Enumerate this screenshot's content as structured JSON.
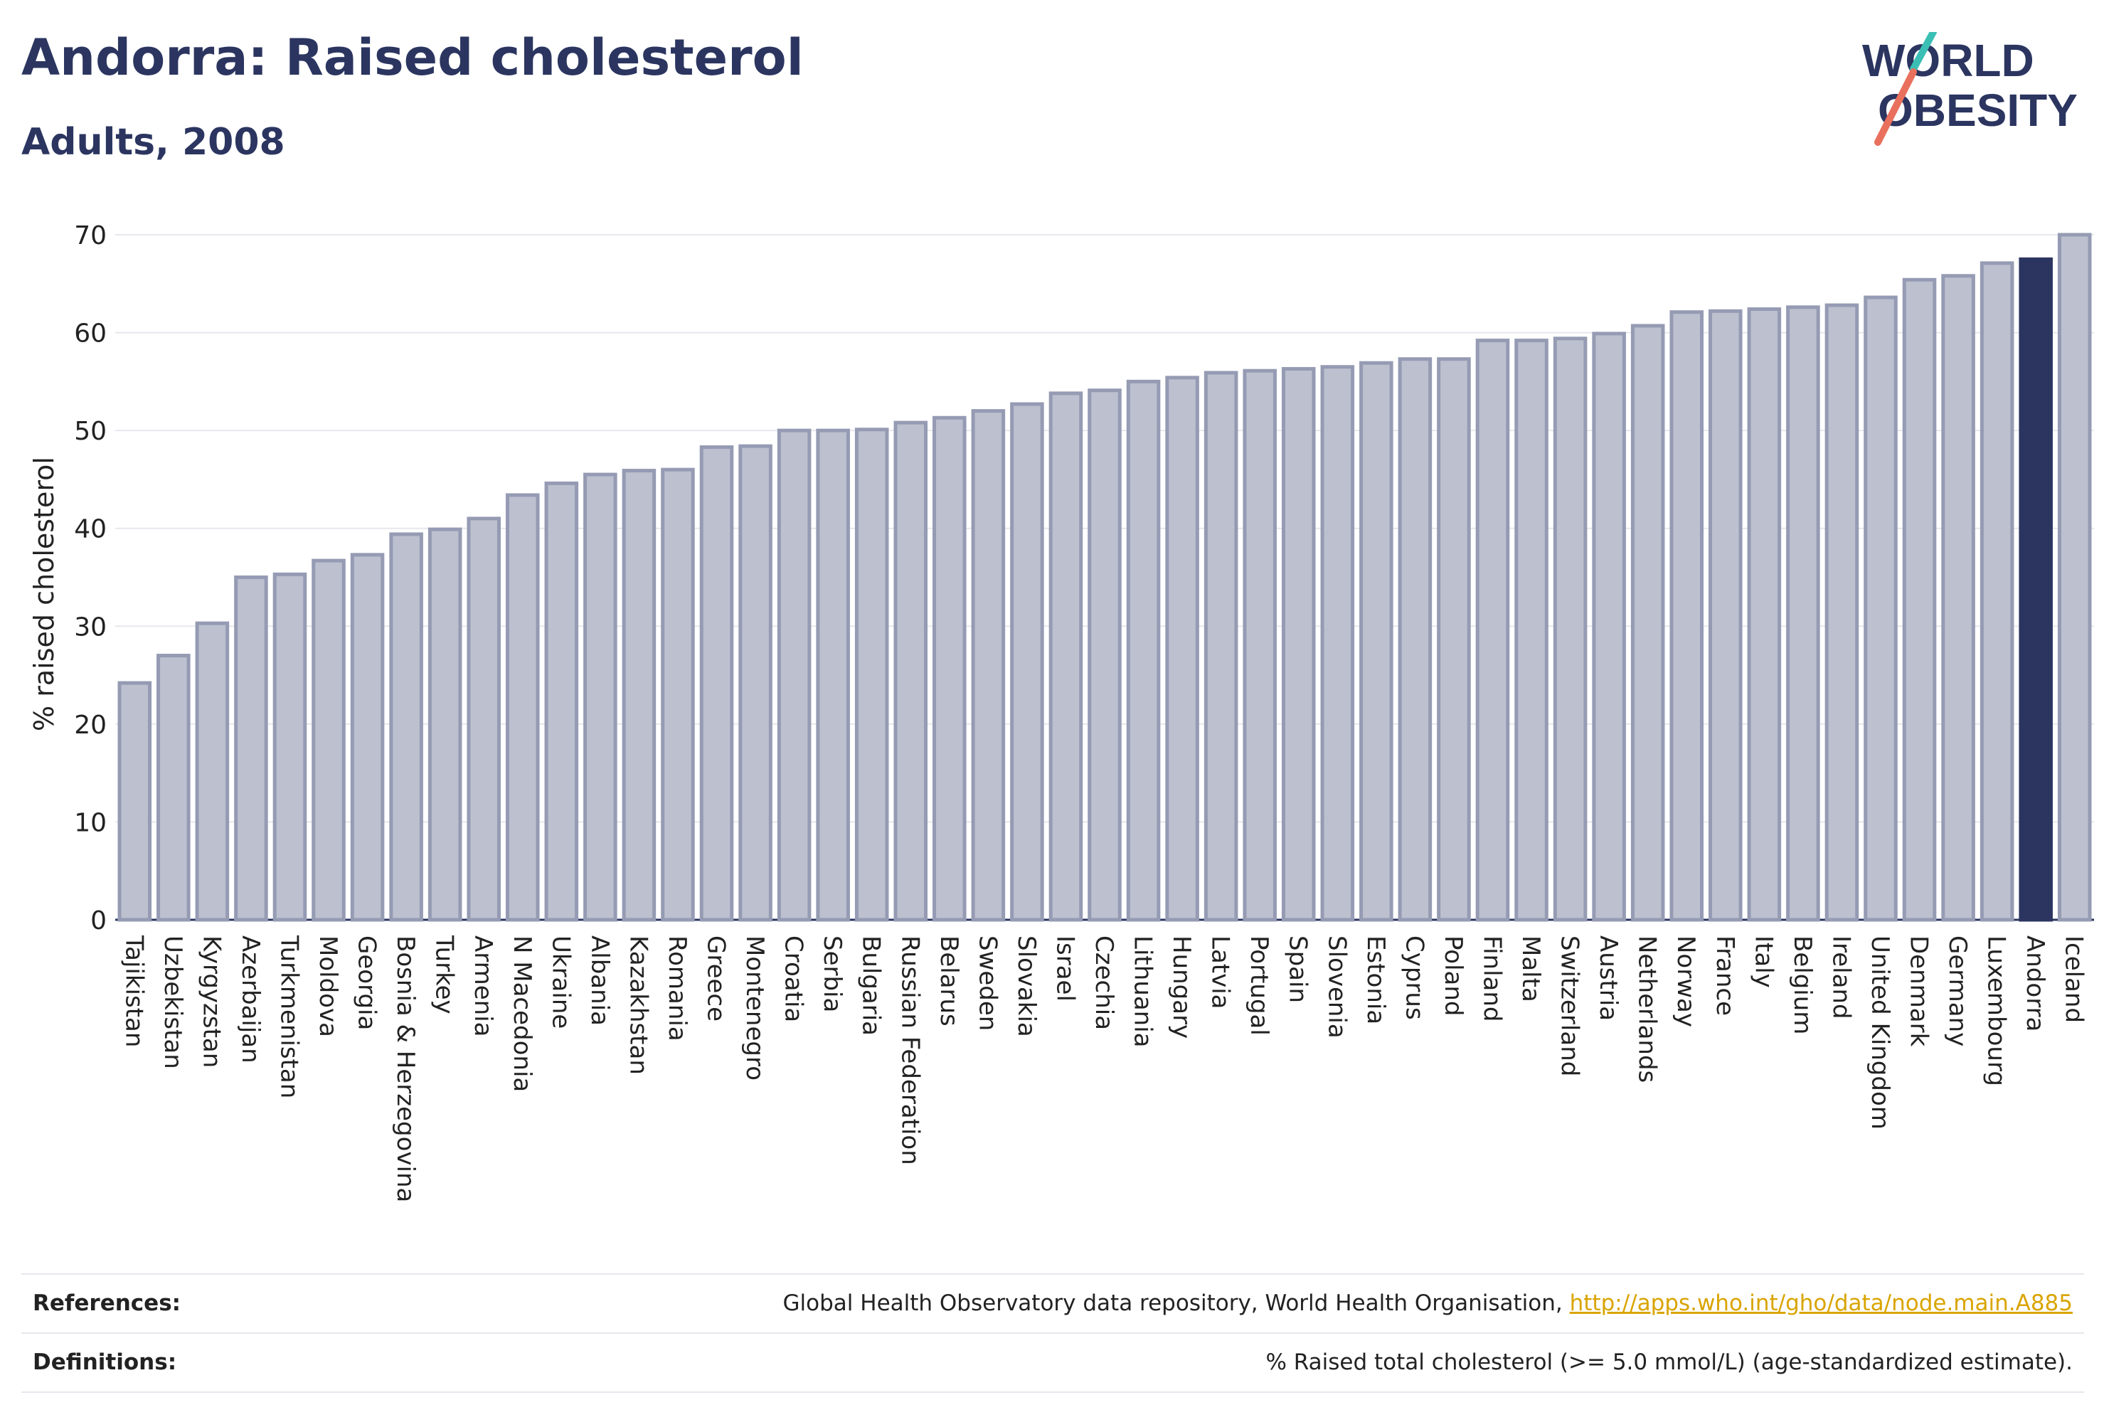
{
  "header": {
    "title": "Andorra: Raised cholesterol",
    "subtitle": "Adults, 2008"
  },
  "logo": {
    "line1": "WORLD",
    "line2": "OBESITY",
    "colors": {
      "navy": "#2b3560",
      "teal": "#3bbfb5",
      "coral": "#e8705c"
    }
  },
  "references": {
    "references_label": "References:",
    "references_text": "Global Health Observatory data repository, World Health Organisation, ",
    "references_link": "http://apps.who.int/gho/data/node.main.A885",
    "definitions_label": "Definitions:",
    "definitions_text": "% Raised total cholesterol (>= 5.0 mmol/L) (age-standardized estimate)."
  },
  "colors": {
    "bar": "#bcc0cf",
    "bar_border": "#959bb3",
    "highlight": "#2b3560",
    "grid": "#e6e8ee"
  },
  "chart_data": {
    "type": "bar",
    "ylabel": "% raised cholesterol",
    "xlabel": "",
    "ylim": [
      0,
      70
    ],
    "yticks": [
      0,
      10,
      20,
      30,
      40,
      50,
      60,
      70
    ],
    "grid": true,
    "highlight": "Andorra",
    "categories": [
      "Tajikistan",
      "Uzbekistan",
      "Kyrgyzstan",
      "Azerbaijan",
      "Turkmenistan",
      "Moldova",
      "Georgia",
      "Bosnia & Herzegovina",
      "Turkey",
      "Armenia",
      "N Macedonia",
      "Ukraine",
      "Albania",
      "Kazakhstan",
      "Romania",
      "Greece",
      "Montenegro",
      "Croatia",
      "Serbia",
      "Bulgaria",
      "Russian Federation",
      "Belarus",
      "Sweden",
      "Slovakia",
      "Israel",
      "Czechia",
      "Lithuania",
      "Hungary",
      "Latvia",
      "Portugal",
      "Spain",
      "Slovenia",
      "Estonia",
      "Cyprus",
      "Poland",
      "Finland",
      "Malta",
      "Switzerland",
      "Austria",
      "Netherlands",
      "Norway",
      "France",
      "Italy",
      "Belgium",
      "Ireland",
      "United Kingdom",
      "Denmark",
      "Germany",
      "Luxembourg",
      "Andorra",
      "Iceland"
    ],
    "values": [
      24.2,
      27.0,
      30.3,
      35.0,
      35.3,
      36.7,
      37.3,
      39.4,
      39.9,
      41.0,
      43.4,
      44.6,
      45.5,
      45.9,
      46.0,
      48.3,
      48.4,
      50.0,
      50.0,
      50.1,
      50.8,
      51.3,
      52.0,
      52.7,
      53.8,
      54.1,
      55.0,
      55.4,
      55.9,
      56.1,
      56.3,
      56.5,
      56.9,
      57.3,
      57.3,
      59.2,
      59.2,
      59.4,
      59.9,
      60.7,
      62.1,
      62.2,
      62.4,
      62.6,
      62.8,
      63.6,
      65.4,
      65.8,
      67.1,
      67.5,
      70.0
    ]
  }
}
